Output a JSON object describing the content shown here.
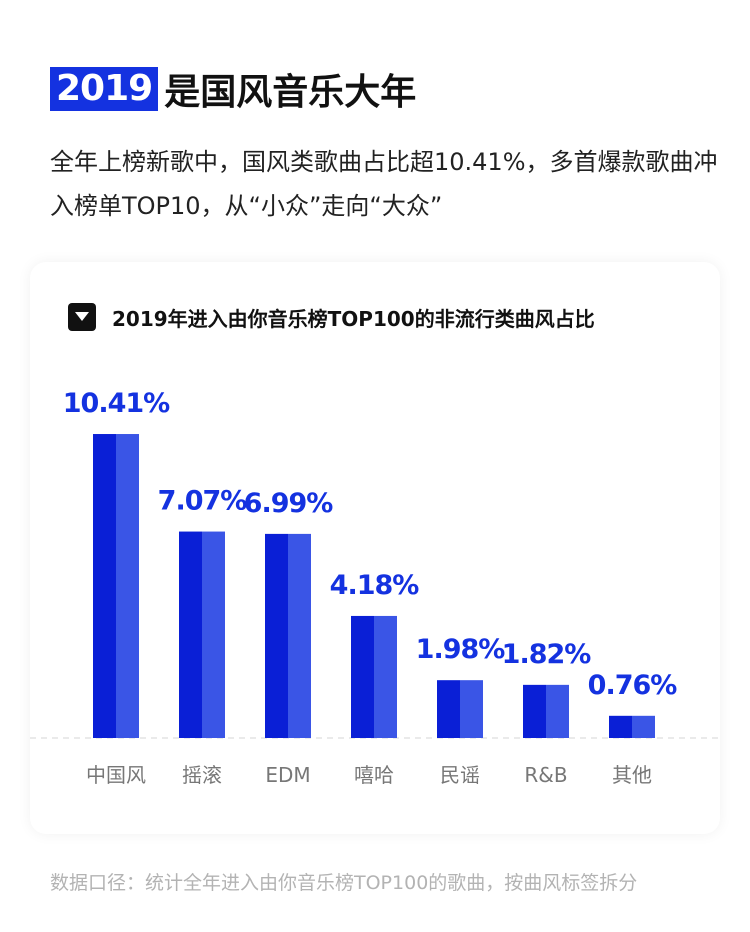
{
  "header": {
    "year": "2019",
    "title": "是国风音乐大年"
  },
  "intro": "全年上榜新歌中，国风类歌曲占比超10.41%，多首爆款歌曲冲入榜单TOP10，从“小众”走向“大众”",
  "card": {
    "collapse_icon": "triangle-down-icon"
  },
  "footnote": "数据口径：统计全年进入由你音乐榜TOP100的歌曲，按曲风标签拆分",
  "colors": {
    "accent": "#1432e0",
    "bar_dark": "#0a1fd6",
    "bar_light": "#3a55e6",
    "axis_label": "#777777"
  },
  "chart_data": {
    "type": "bar",
    "title": "2019年进入由你音乐榜TOP100的非流行类曲风占比",
    "categories": [
      "中国风",
      "摇滚",
      "EDM",
      "嘻哈",
      "民谣",
      "R&B",
      "其他"
    ],
    "values": [
      10.41,
      7.07,
      6.99,
      4.18,
      1.98,
      1.82,
      0.76
    ],
    "value_labels": [
      "10.41%",
      "7.07%",
      "6.99%",
      "4.18%",
      "1.98%",
      "1.82%",
      "0.76%"
    ],
    "unit": "%",
    "ylim": [
      0,
      12
    ],
    "grid": false,
    "xlabel": "",
    "ylabel": ""
  }
}
